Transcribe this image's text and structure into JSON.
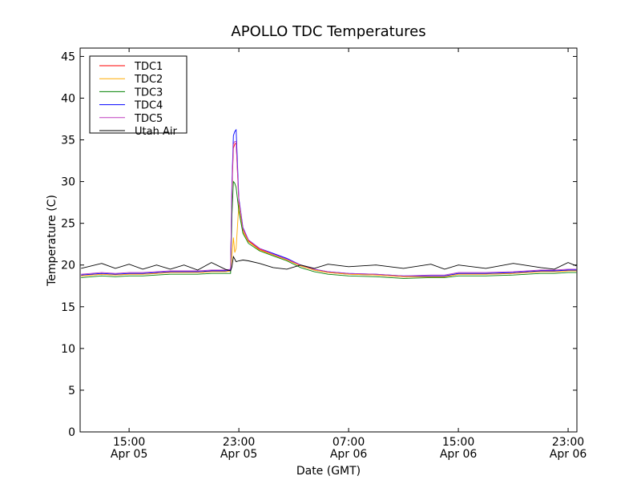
{
  "chart_data": {
    "type": "line",
    "title": "APOLLO TDC Temperatures",
    "xlabel": "Date (GMT)",
    "ylabel": "Temperature (C)",
    "x_units": "hours since Apr 05 00:00 GMT",
    "xlim": [
      11.43,
      47.64
    ],
    "ylim": [
      0,
      46
    ],
    "grid": false,
    "legend_placement": "top-left",
    "x_ticks": [
      {
        "value": 15,
        "time": "15:00",
        "date": "Apr 05"
      },
      {
        "value": 23,
        "time": "23:00",
        "date": "Apr 05"
      },
      {
        "value": 31,
        "time": "07:00",
        "date": "Apr 06"
      },
      {
        "value": 39,
        "time": "15:00",
        "date": "Apr 06"
      },
      {
        "value": 47,
        "time": "23:00",
        "date": "Apr 06"
      }
    ],
    "y_ticks": [
      "0",
      "5",
      "10",
      "15",
      "20",
      "25",
      "30",
      "35",
      "40",
      "45"
    ],
    "x": [
      11.5,
      13,
      14,
      15,
      16,
      17,
      18,
      19,
      20,
      21,
      22,
      22.4,
      22.5,
      22.6,
      22.7,
      22.8,
      23,
      23.3,
      23.7,
      24.5,
      25.5,
      26.5,
      27.5,
      28.5,
      29.5,
      31,
      33,
      35,
      37,
      38,
      39,
      41,
      43,
      45,
      46,
      47,
      47.6
    ],
    "series": [
      {
        "name": "TDC1",
        "color": "#ff0000",
        "values": [
          18.7,
          18.9,
          18.8,
          18.9,
          18.9,
          19.0,
          19.1,
          19.1,
          19.1,
          19.2,
          19.2,
          19.3,
          29.0,
          34.0,
          34.5,
          34.6,
          27.5,
          24.3,
          22.9,
          21.9,
          21.3,
          20.7,
          19.9,
          19.4,
          19.1,
          18.9,
          18.8,
          18.6,
          18.6,
          18.6,
          18.9,
          18.9,
          19.0,
          19.2,
          19.2,
          19.3,
          19.3
        ]
      },
      {
        "name": "TDC2",
        "color": "#ffaa00",
        "values": [
          18.7,
          18.9,
          18.8,
          18.9,
          18.9,
          19.0,
          19.1,
          19.1,
          19.1,
          19.2,
          19.2,
          19.3,
          21.0,
          23.3,
          21.5,
          22.0,
          27.3,
          24.0,
          22.8,
          21.8,
          21.2,
          20.6,
          19.9,
          19.4,
          19.1,
          18.9,
          18.8,
          18.6,
          18.6,
          18.6,
          18.9,
          18.9,
          19.0,
          19.2,
          19.2,
          19.3,
          19.3
        ]
      },
      {
        "name": "TDC3",
        "color": "#008000",
        "values": [
          18.5,
          18.7,
          18.6,
          18.7,
          18.7,
          18.8,
          18.9,
          18.9,
          18.9,
          19.0,
          19.0,
          19.0,
          26.0,
          30.0,
          29.8,
          29.3,
          26.5,
          23.8,
          22.6,
          21.7,
          21.1,
          20.5,
          19.7,
          19.2,
          18.9,
          18.7,
          18.6,
          18.4,
          18.5,
          18.5,
          18.7,
          18.7,
          18.8,
          19.0,
          19.0,
          19.1,
          19.1
        ]
      },
      {
        "name": "TDC4",
        "color": "#0000ff",
        "values": [
          18.8,
          19.0,
          18.9,
          19.0,
          19.0,
          19.1,
          19.2,
          19.2,
          19.2,
          19.3,
          19.3,
          19.4,
          30.0,
          35.5,
          36.0,
          36.2,
          28.0,
          24.5,
          23.0,
          22.0,
          21.4,
          20.8,
          20.0,
          19.5,
          19.2,
          19.0,
          18.9,
          18.7,
          18.7,
          18.7,
          19.0,
          19.0,
          19.1,
          19.3,
          19.3,
          19.4,
          19.4
        ]
      },
      {
        "name": "TDC5",
        "color": "#bf3fbf",
        "values": [
          18.9,
          19.1,
          19.0,
          19.1,
          19.1,
          19.2,
          19.3,
          19.3,
          19.3,
          19.4,
          19.4,
          19.5,
          29.5,
          34.5,
          34.8,
          34.8,
          27.8,
          24.4,
          23.0,
          22.0,
          21.3,
          20.7,
          20.0,
          19.5,
          19.2,
          19.0,
          18.9,
          18.7,
          18.8,
          18.8,
          19.1,
          19.1,
          19.2,
          19.4,
          19.4,
          19.5,
          19.5
        ]
      },
      {
        "name": "Utah Air",
        "color": "#000000",
        "values": [
          19.6,
          20.2,
          19.6,
          20.1,
          19.5,
          20.0,
          19.5,
          20.0,
          19.4,
          20.3,
          19.5,
          19.3,
          19.8,
          21.0,
          20.7,
          20.4,
          20.5,
          20.6,
          20.5,
          20.2,
          19.7,
          19.5,
          20.0,
          19.6,
          20.1,
          19.8,
          20.0,
          19.6,
          20.1,
          19.5,
          20.0,
          19.6,
          20.2,
          19.7,
          19.5,
          20.3,
          19.9
        ]
      }
    ]
  }
}
